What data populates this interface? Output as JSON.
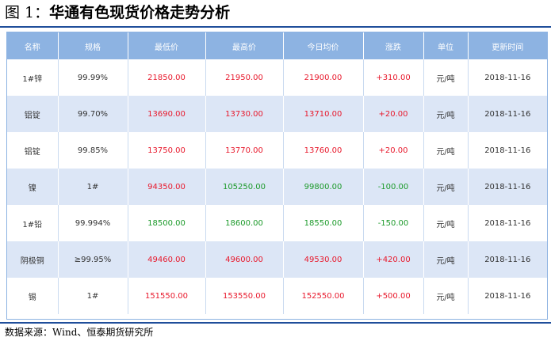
{
  "figure": {
    "label": "图 1：",
    "title": "华通有色现货价格走势分析"
  },
  "table": {
    "headers": [
      "名称",
      "规格",
      "最低价",
      "最高价",
      "今日均价",
      "涨跌",
      "单位",
      "更新时间"
    ],
    "rows": [
      [
        "1#锌",
        "99.99%",
        "21850.00",
        "21950.00",
        "21900.00",
        "+310.00",
        "元/吨",
        "2018-11-16"
      ],
      [
        "铝锭",
        "99.70%",
        "13690.00",
        "13730.00",
        "13710.00",
        "+20.00",
        "元/吨",
        "2018-11-16"
      ],
      [
        "铝锭",
        "99.85%",
        "13750.00",
        "13770.00",
        "13760.00",
        "+20.00",
        "元/吨",
        "2018-11-16"
      ],
      [
        "镍",
        "1#",
        "94350.00",
        "105250.00",
        "99800.00",
        "-100.00",
        "元/吨",
        "2018-11-16"
      ],
      [
        "1#铅",
        "99.994%",
        "18500.00",
        "18600.00",
        "18550.00",
        "-150.00",
        "元/吨",
        "2018-11-16"
      ],
      [
        "阴极铜",
        "≥99.95%",
        "49460.00",
        "49600.00",
        "49530.00",
        "+420.00",
        "元/吨",
        "2018-11-16"
      ],
      [
        "锡",
        "1#",
        "151550.00",
        "153550.00",
        "152550.00",
        "+500.00",
        "元/吨",
        "2018-11-16"
      ]
    ],
    "row_colors": [
      [
        "red",
        "red",
        "red"
      ],
      [
        "red",
        "red",
        "red"
      ],
      [
        "red",
        "red",
        "red"
      ],
      [
        "red",
        "green",
        "green"
      ],
      [
        "green",
        "green",
        "green"
      ],
      [
        "red",
        "red",
        "red"
      ],
      [
        "red",
        "red",
        "red"
      ]
    ],
    "colors": {
      "header_bg": "#8db3e2",
      "stripe_bg": "#dce6f6",
      "up_red": "#e8192c",
      "down_green": "#1c9a2a"
    }
  },
  "source": "数据来源：Wind、恒泰期货研究所"
}
